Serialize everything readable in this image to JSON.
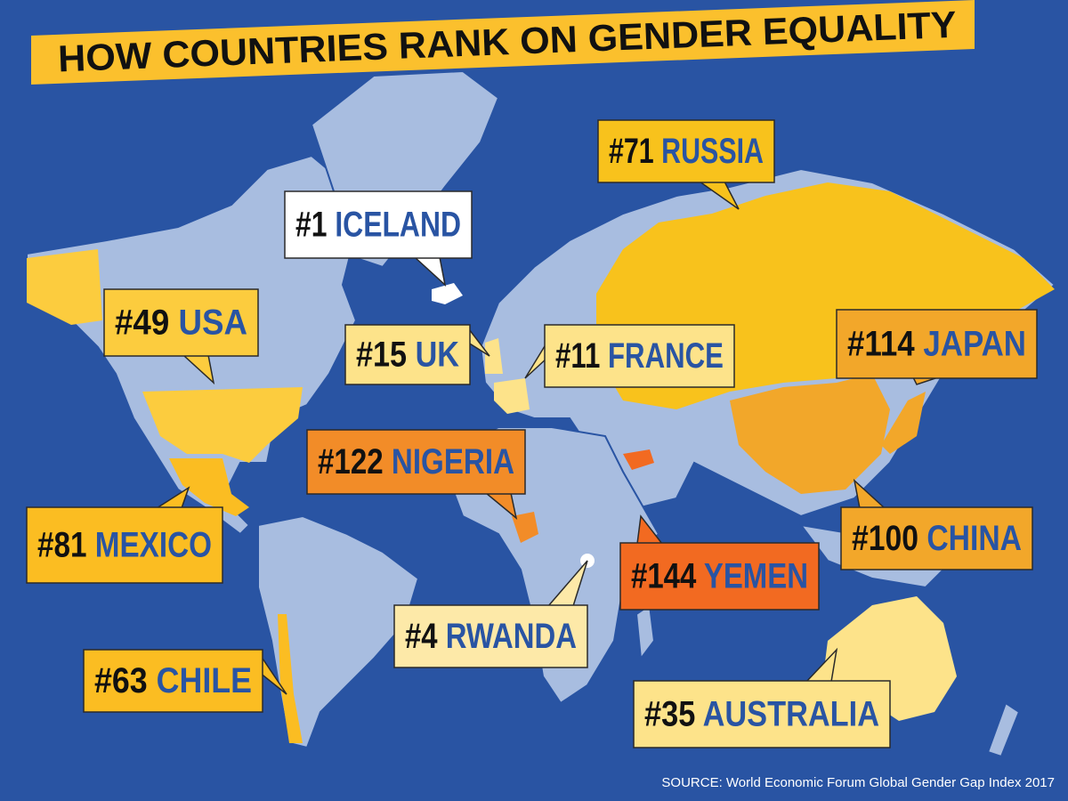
{
  "header": {
    "title": "HOW COUNTRIES RANK ON GENDER EQUALITY"
  },
  "labels": [
    {
      "rank": "#71",
      "country": "RUSSIA"
    },
    {
      "rank": "#1",
      "country": "ICELAND"
    },
    {
      "rank": "#49",
      "country": "USA"
    },
    {
      "rank": "#15",
      "country": "UK"
    },
    {
      "rank": "#11",
      "country": "FRANCE"
    },
    {
      "rank": "#114",
      "country": "JAPAN"
    },
    {
      "rank": "#122",
      "country": "NIGERIA"
    },
    {
      "rank": "#81",
      "country": "MEXICO"
    },
    {
      "rank": "#100",
      "country": "CHINA"
    },
    {
      "rank": "#144",
      "country": "YEMEN"
    },
    {
      "rank": "#4",
      "country": "RWANDA"
    },
    {
      "rank": "#63",
      "country": "CHILE"
    },
    {
      "rank": "#35",
      "country": "AUSTRALIA"
    }
  ],
  "footer": {
    "source": "SOURCE: World Economic Forum Global Gender Gap Index 2017"
  }
}
